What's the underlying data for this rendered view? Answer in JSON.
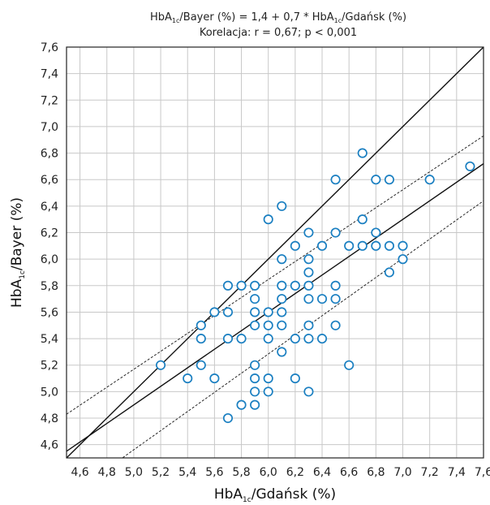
{
  "chart_data": {
    "type": "scatter",
    "title_line1_parts": [
      "HbA",
      "1c",
      "/Bayer (%) = 1,4 + 0,7 * HbA",
      "1c",
      "/Gdańsk (%)"
    ],
    "title_line2": "Korelacja: r = 0,67;  p < 0,001",
    "xlabel_parts": [
      "HbA",
      "1c",
      "/Gdańsk (%)"
    ],
    "ylabel_parts": [
      "HbA",
      "1c",
      "/Bayer (%)"
    ],
    "xlim": [
      4.5,
      7.6
    ],
    "ylim": [
      4.5,
      7.6
    ],
    "x_ticks": [
      4.6,
      4.8,
      5.0,
      5.2,
      5.4,
      5.6,
      5.8,
      6.0,
      6.2,
      6.4,
      6.6,
      6.8,
      7.0,
      7.2,
      7.4,
      7.6
    ],
    "x_tick_labels": [
      "4,6",
      "4,8",
      "5,0",
      "5,2",
      "5,4",
      "5,6",
      "5,8",
      "6,0",
      "6,2",
      "6,4",
      "6,6",
      "6,8",
      "7,0",
      "7,2",
      "7,4",
      "7,6"
    ],
    "y_ticks": [
      4.6,
      4.8,
      5.0,
      5.2,
      5.4,
      5.6,
      5.8,
      6.0,
      6.2,
      6.4,
      6.6,
      6.8,
      7.0,
      7.2,
      7.4,
      7.6
    ],
    "y_tick_labels": [
      "4,6",
      "4,8",
      "5,0",
      "5,2",
      "5,4",
      "5,6",
      "5,8",
      "6,0",
      "6,2",
      "6,4",
      "6,6",
      "6,8",
      "7,0",
      "7,2",
      "7,4",
      "7,6"
    ],
    "grid": true,
    "point_color": "#1a7fc1",
    "points": [
      {
        "x": 5.2,
        "y": 5.2
      },
      {
        "x": 5.4,
        "y": 5.1
      },
      {
        "x": 5.5,
        "y": 5.5
      },
      {
        "x": 5.5,
        "y": 5.4
      },
      {
        "x": 5.5,
        "y": 5.2
      },
      {
        "x": 5.6,
        "y": 5.6
      },
      {
        "x": 5.6,
        "y": 5.1
      },
      {
        "x": 5.7,
        "y": 5.8
      },
      {
        "x": 5.7,
        "y": 5.6
      },
      {
        "x": 5.7,
        "y": 5.4
      },
      {
        "x": 5.7,
        "y": 4.8
      },
      {
        "x": 5.8,
        "y": 5.8
      },
      {
        "x": 5.8,
        "y": 5.4
      },
      {
        "x": 5.8,
        "y": 4.9
      },
      {
        "x": 5.9,
        "y": 5.8
      },
      {
        "x": 5.9,
        "y": 5.7
      },
      {
        "x": 5.9,
        "y": 5.6
      },
      {
        "x": 5.9,
        "y": 5.5
      },
      {
        "x": 5.9,
        "y": 5.2
      },
      {
        "x": 5.9,
        "y": 5.1
      },
      {
        "x": 5.9,
        "y": 5.0
      },
      {
        "x": 5.9,
        "y": 4.9
      },
      {
        "x": 6.0,
        "y": 6.3
      },
      {
        "x": 6.0,
        "y": 5.6
      },
      {
        "x": 6.0,
        "y": 5.5
      },
      {
        "x": 6.0,
        "y": 5.4
      },
      {
        "x": 6.0,
        "y": 5.1
      },
      {
        "x": 6.0,
        "y": 5.0
      },
      {
        "x": 6.1,
        "y": 6.4
      },
      {
        "x": 6.1,
        "y": 6.0
      },
      {
        "x": 6.1,
        "y": 5.8
      },
      {
        "x": 6.1,
        "y": 5.7
      },
      {
        "x": 6.1,
        "y": 5.6
      },
      {
        "x": 6.1,
        "y": 5.5
      },
      {
        "x": 6.1,
        "y": 5.3
      },
      {
        "x": 6.2,
        "y": 6.1
      },
      {
        "x": 6.2,
        "y": 5.8
      },
      {
        "x": 6.2,
        "y": 5.4
      },
      {
        "x": 6.2,
        "y": 5.1
      },
      {
        "x": 6.3,
        "y": 6.2
      },
      {
        "x": 6.3,
        "y": 6.0
      },
      {
        "x": 6.3,
        "y": 5.9
      },
      {
        "x": 6.3,
        "y": 5.8
      },
      {
        "x": 6.3,
        "y": 5.7
      },
      {
        "x": 6.3,
        "y": 5.5
      },
      {
        "x": 6.3,
        "y": 5.4
      },
      {
        "x": 6.3,
        "y": 5.0
      },
      {
        "x": 6.4,
        "y": 6.1
      },
      {
        "x": 6.4,
        "y": 5.7
      },
      {
        "x": 6.4,
        "y": 5.4
      },
      {
        "x": 6.5,
        "y": 6.6
      },
      {
        "x": 6.5,
        "y": 6.2
      },
      {
        "x": 6.5,
        "y": 5.8
      },
      {
        "x": 6.5,
        "y": 5.7
      },
      {
        "x": 6.5,
        "y": 5.5
      },
      {
        "x": 6.6,
        "y": 6.1
      },
      {
        "x": 6.6,
        "y": 5.2
      },
      {
        "x": 6.7,
        "y": 6.8
      },
      {
        "x": 6.7,
        "y": 6.3
      },
      {
        "x": 6.7,
        "y": 6.1
      },
      {
        "x": 6.8,
        "y": 6.6
      },
      {
        "x": 6.8,
        "y": 6.2
      },
      {
        "x": 6.8,
        "y": 6.1
      },
      {
        "x": 6.9,
        "y": 6.6
      },
      {
        "x": 6.9,
        "y": 6.1
      },
      {
        "x": 6.9,
        "y": 5.9
      },
      {
        "x": 7.0,
        "y": 6.1
      },
      {
        "x": 7.0,
        "y": 6.0
      },
      {
        "x": 7.2,
        "y": 6.6
      },
      {
        "x": 7.5,
        "y": 6.7
      }
    ],
    "regression": {
      "intercept": 1.4,
      "slope": 0.7
    },
    "identity_line": {
      "intercept": 0,
      "slope": 1
    },
    "confidence_band": {
      "upper": [
        [
          4.5,
          4.83
        ],
        [
          7.6,
          6.93
        ]
      ],
      "lower": [
        [
          4.5,
          4.2
        ],
        [
          7.6,
          6.44
        ]
      ]
    }
  }
}
